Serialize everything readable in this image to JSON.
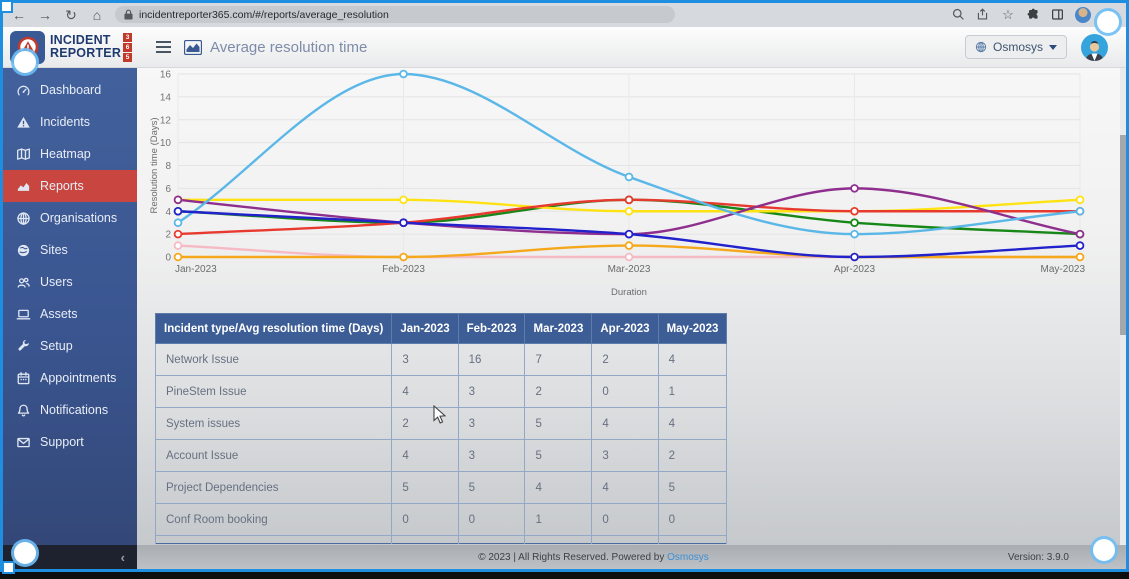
{
  "browser": {
    "url": "incidentreporter365.com/#/reports/average_resolution",
    "nav_icons": [
      "back-icon",
      "forward-icon",
      "reload-icon",
      "home-icon"
    ],
    "action_icons": [
      "zoom-icon",
      "share-icon",
      "star-icon",
      "extension-icon",
      "tab-icon",
      "profile-avatar",
      "menu-kebab-icon"
    ]
  },
  "brand": {
    "line1": "INCIDENT",
    "line2": "REPORTER",
    "digits": [
      "3",
      "6",
      "5"
    ]
  },
  "header": {
    "title": "Average resolution time",
    "org_label": "Osmosys"
  },
  "sidebar": {
    "items": [
      {
        "id": "dashboard",
        "label": "Dashboard",
        "icon": "dashboard-icon",
        "active": false
      },
      {
        "id": "incidents",
        "label": "Incidents",
        "icon": "incidents-icon",
        "active": false
      },
      {
        "id": "heatmap",
        "label": "Heatmap",
        "icon": "heatmap-icon",
        "active": false
      },
      {
        "id": "reports",
        "label": "Reports",
        "icon": "reports-icon",
        "active": true
      },
      {
        "id": "organisations",
        "label": "Organisations",
        "icon": "organisations-icon",
        "active": false
      },
      {
        "id": "sites",
        "label": "Sites",
        "icon": "sites-icon",
        "active": false
      },
      {
        "id": "users",
        "label": "Users",
        "icon": "users-icon",
        "active": false
      },
      {
        "id": "assets",
        "label": "Assets",
        "icon": "assets-icon",
        "active": false
      },
      {
        "id": "setup",
        "label": "Setup",
        "icon": "setup-icon",
        "active": false
      },
      {
        "id": "appointments",
        "label": "Appointments",
        "icon": "appointments-icon",
        "active": false
      },
      {
        "id": "notifications",
        "label": "Notifications",
        "icon": "notifications-icon",
        "active": false
      },
      {
        "id": "support",
        "label": "Support",
        "icon": "support-icon",
        "active": false
      }
    ]
  },
  "chart_data": {
    "type": "line",
    "x": [
      "Jan-2023",
      "Feb-2023",
      "Mar-2023",
      "Apr-2023",
      "May-2023"
    ],
    "series": [
      {
        "name": "unlabeled pink series",
        "color": "#f6bac4",
        "values": [
          1,
          0,
          0,
          0,
          0
        ]
      },
      {
        "name": "Conf Room booking",
        "color": "#f5a81c",
        "values": [
          0,
          0,
          1,
          0,
          0
        ]
      },
      {
        "name": "Account Issue",
        "color": "#178717",
        "values": [
          4,
          3,
          5,
          3,
          2
        ]
      },
      {
        "name": "Project Dependencies",
        "color": "#ffe212",
        "values": [
          5,
          5,
          4,
          4,
          5
        ]
      },
      {
        "name": "System issues",
        "color": "#e8392e",
        "values": [
          2,
          3,
          5,
          4,
          4
        ]
      },
      {
        "name": "unlabeled purple series",
        "color": "#8e2f8e",
        "values": [
          5,
          3,
          2,
          6,
          2
        ]
      },
      {
        "name": "Network Issue",
        "color": "#5bb7e8",
        "values": [
          3,
          16,
          7,
          2,
          4
        ]
      },
      {
        "name": "PineStem Issue",
        "color": "#2222cc",
        "values": [
          4,
          3,
          2,
          0,
          1
        ]
      }
    ],
    "title": "",
    "xlabel": "Duration",
    "ylabel": "Resolution time (Days)",
    "ylim": [
      0,
      16
    ],
    "ytick_step": 2,
    "grid": true,
    "legend": "none"
  },
  "table": {
    "columns": [
      "Incident type/Avg resolution time (Days)",
      "Jan-2023",
      "Feb-2023",
      "Mar-2023",
      "Apr-2023",
      "May-2023"
    ],
    "rows": [
      {
        "label": "Network Issue",
        "values": [
          3,
          16,
          7,
          2,
          4
        ]
      },
      {
        "label": "PineStem Issue",
        "values": [
          4,
          3,
          2,
          0,
          1
        ]
      },
      {
        "label": "System issues",
        "values": [
          2,
          3,
          5,
          4,
          4
        ]
      },
      {
        "label": "Account Issue",
        "values": [
          4,
          3,
          5,
          3,
          2
        ]
      },
      {
        "label": "Project Dependencies",
        "values": [
          5,
          5,
          4,
          4,
          5
        ]
      },
      {
        "label": "Conf Room booking",
        "values": [
          0,
          0,
          1,
          0,
          0
        ]
      }
    ]
  },
  "footer": {
    "copyright_prefix": "© 2023 | All Rights Reserved. Powered by",
    "powered_link": "Osmosys",
    "version": "Version: 3.9.0"
  },
  "colors": {
    "sidebar_blue": "#3f5d99",
    "active_item_red": "#c8463f",
    "table_header_blue": "#3d5d96",
    "brand_navy": "#1e3a6e",
    "brand_red": "#c0392b",
    "frame_blue": "#1e8fe0",
    "link_blue": "#3d8fd6"
  }
}
